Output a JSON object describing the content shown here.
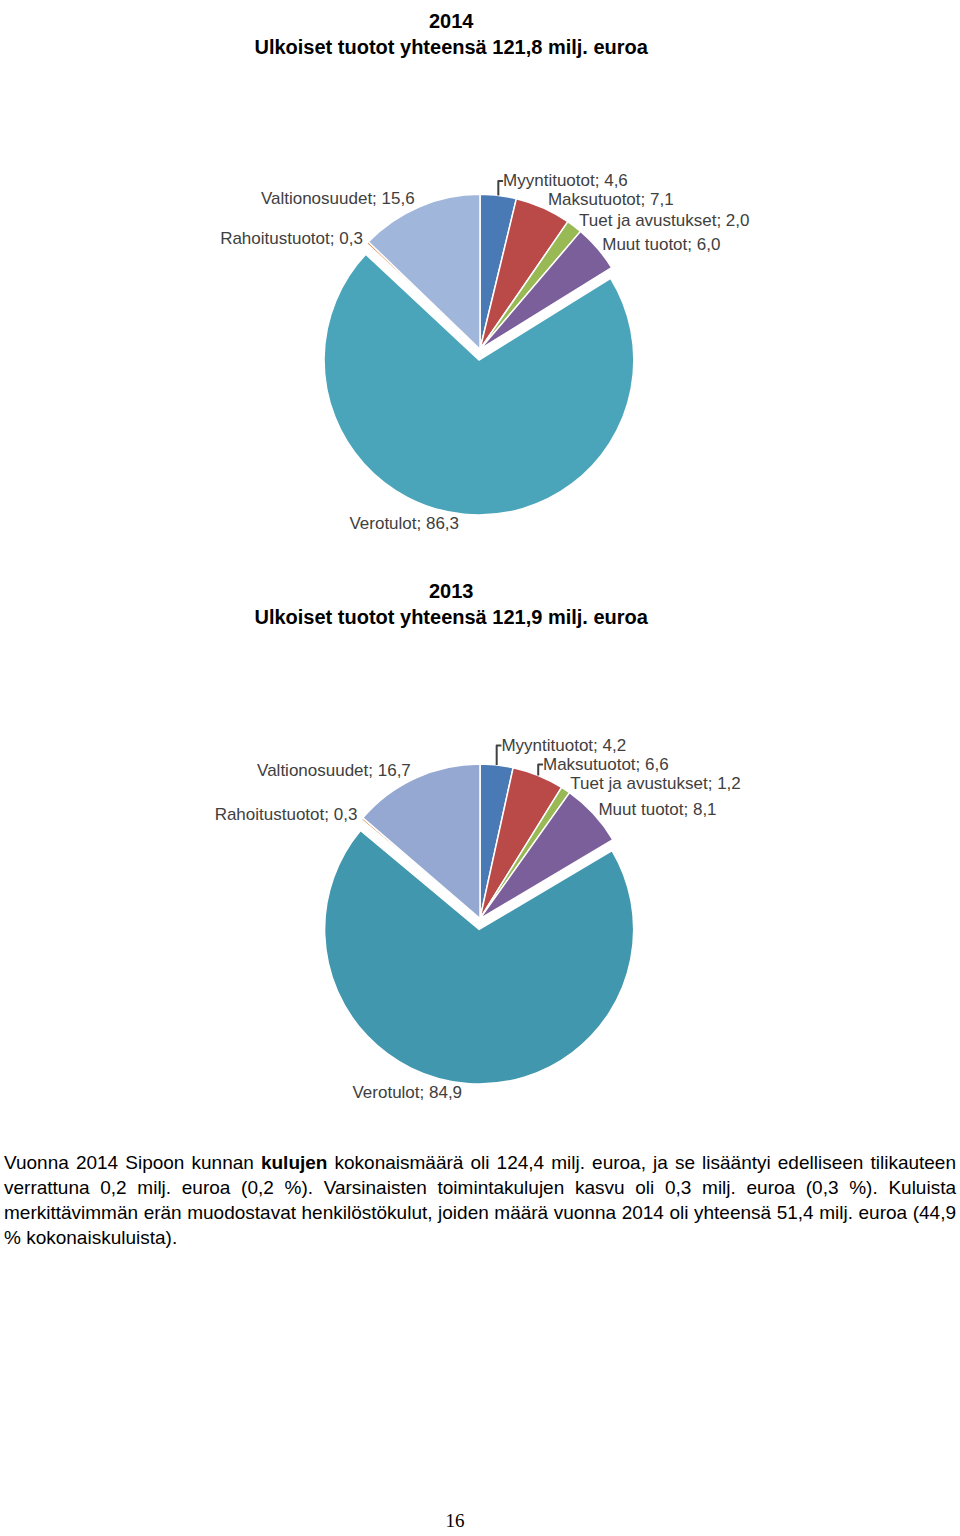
{
  "chart_data": [
    {
      "type": "pie",
      "title": "2014",
      "subtitle": "Ulkoiset tuotot yhteensä 121,8 milj. euroa",
      "categories": [
        "Myyntituotot",
        "Maksutuotot",
        "Tuet ja avustukset",
        "Muut tuotot",
        "Verotulot",
        "Rahoitustuotot",
        "Valtionosuudet"
      ],
      "values": [
        4.6,
        7.1,
        2.0,
        6.0,
        86.3,
        0.3,
        15.6
      ],
      "value_labels": [
        "Myyntituotot; 4,6",
        "Maksutuotot; 7,1",
        "Tuet ja avustukset; 2,0",
        "Muut tuotot; 6,0",
        "Verotulot; 86,3",
        "Rahoitustuotot; 0,3",
        "Valtionosuudet; 15,6"
      ],
      "colors": [
        "#4a7ab5",
        "#b94a48",
        "#98b954",
        "#7b5f9a",
        "#4aa5bb",
        "#e0813a",
        "#a0b6da"
      ],
      "data_labels": true
    },
    {
      "type": "pie",
      "title": "2013",
      "subtitle": "Ulkoiset tuotot yhteensä 121,9 milj. euroa",
      "categories": [
        "Myyntituotot",
        "Maksutuotot",
        "Tuet ja avustukset",
        "Muut tuotot",
        "Verotulot",
        "Rahoitustuotot",
        "Valtionosuudet"
      ],
      "values": [
        4.2,
        6.6,
        1.2,
        8.1,
        84.9,
        0.3,
        16.7
      ],
      "value_labels": [
        "Myyntituotot; 4,2",
        "Maksutuotot; 6,6",
        "Tuet ja avustukset; 1,2",
        "Muut tuotot; 8,1",
        "Verotulot; 84,9",
        "Rahoitustuotot; 0,3",
        "Valtionosuudet; 16,7"
      ],
      "colors": [
        "#4a7ab5",
        "#b94a48",
        "#98b954",
        "#7b5f9a",
        "#4197ae",
        "#e0813a",
        "#94a8d2"
      ],
      "data_labels": true
    }
  ],
  "paragraph": {
    "before": "Vuonna 2014 Sipoon kunnan ",
    "bold": "kulujen",
    "after": " kokonaismäärä oli 124,4 milj. euroa, ja se lisääntyi edelliseen tilikauteen verrattuna 0,2 milj. euroa (0,2 %). Varsinaisten toimintakulujen kasvu oli 0,3 milj. euroa (0,3 %). Kuluista merkittävimmän erän muodostavat henkilöstökulut, joiden määrä vuonna 2014 oli yhteensä 51,4 milj. euroa (44,9 % kokonaiskuluista)."
  },
  "page_number": 16
}
